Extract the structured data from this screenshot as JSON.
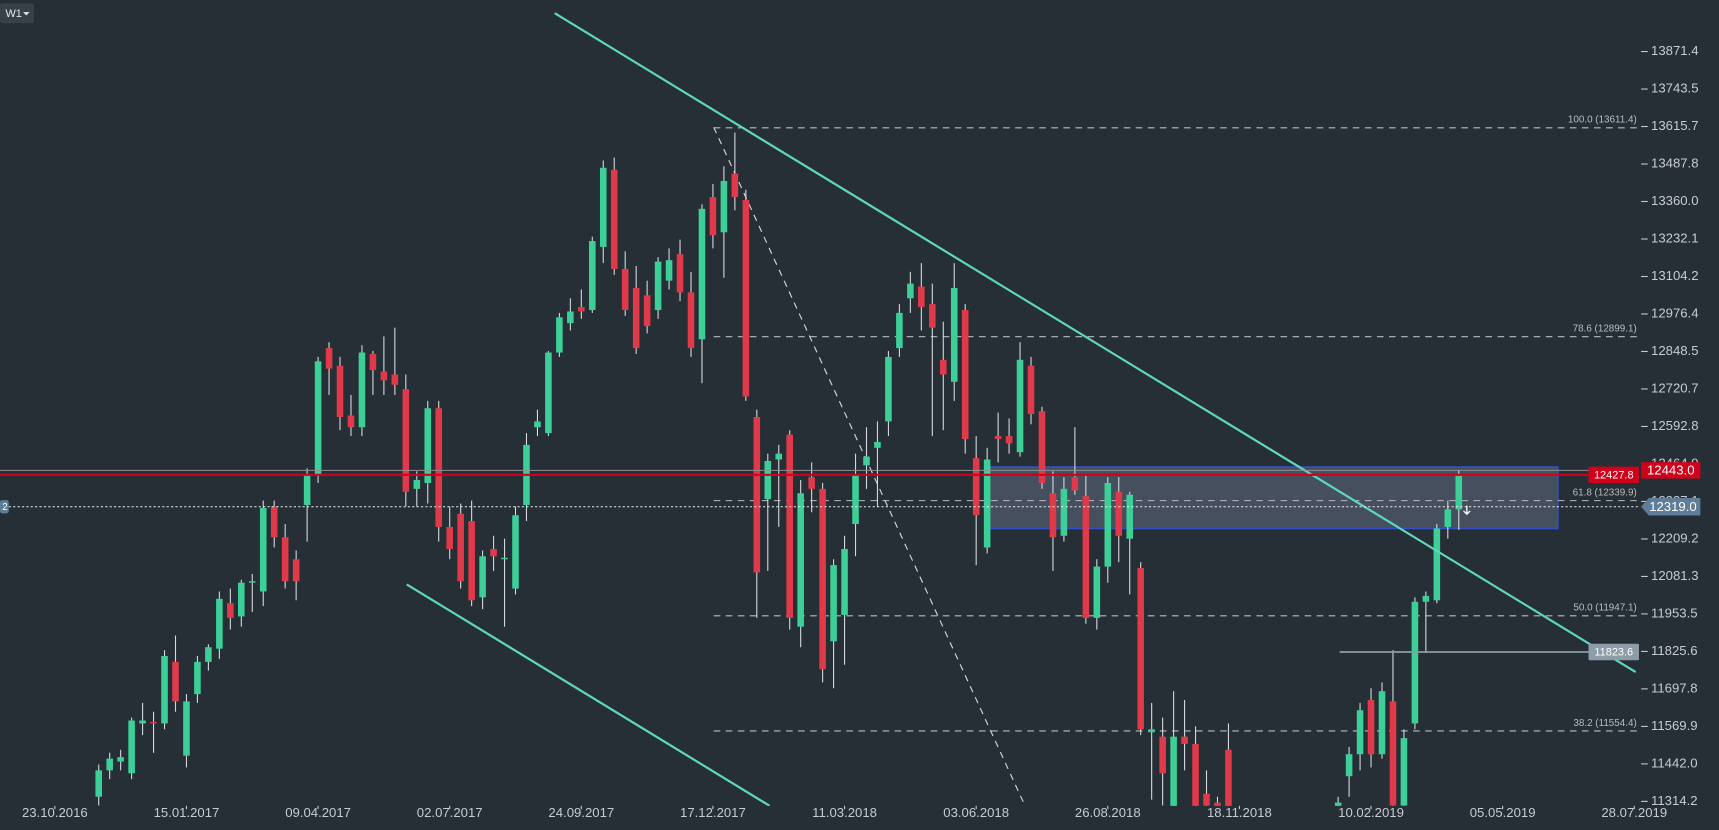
{
  "chart_data": {
    "type": "candlestick",
    "timeframe": "W1",
    "left_tag": "2",
    "up_color": "#3ccf98",
    "down_color": "#e0394a",
    "wick_color": "#d4d8dc",
    "xlim": [
      "18.09.2016",
      "31.07.2019"
    ],
    "ylim": [
      11299,
      14047
    ],
    "xticks": [
      "23.10.2016",
      "15.01.2017",
      "09.04.2017",
      "02.07.2017",
      "24.09.2017",
      "17.12.2017",
      "11.03.2018",
      "03.06.2018",
      "26.08.2018",
      "18.11.2018",
      "10.02.2019",
      "05.05.2019",
      "28.07.2019"
    ],
    "yticks": [
      13871.4,
      13743.5,
      13615.7,
      13487.8,
      {
        "value": 13360,
        "label": "13360.0"
      },
      13232.1,
      13104.2,
      12976.4,
      12848.5,
      12720.7,
      12592.8,
      12464.9,
      12337.1,
      12209.2,
      12081.3,
      11953.5,
      11825.6,
      11697.8,
      11569.9,
      {
        "value": 11442,
        "label": "11442.0"
      },
      11314.2
    ],
    "fib_levels": [
      {
        "value": 13611.4,
        "label": "100.0 (13611.4)"
      },
      {
        "value": 12899.1,
        "label": "78.6 (12899.1)"
      },
      {
        "value": 12339.9,
        "label": "61.8 (12339.9)"
      },
      {
        "value": 11947.1,
        "label": "50.0 (11947.1)"
      },
      {
        "value": 11554.4,
        "label": "38.2 (11554.4)"
      }
    ],
    "levels": [
      {
        "value": 12443,
        "label": "12443.0",
        "color": "#d0021b"
      },
      {
        "value": 12427.8,
        "label": "12427.8",
        "color": "#d0021b"
      },
      {
        "value": 12319,
        "label": "12319.0",
        "color": "#5f7d98"
      },
      {
        "value": 11823.6,
        "label": "11823.6",
        "color": "#8d9ca8"
      }
    ],
    "x": [
      "20.11.2016",
      "27.11.2016",
      "04.12.2016",
      "11.12.2016",
      "18.12.2016",
      "25.12.2016",
      "01.01.2017",
      "08.01.2017",
      "15.01.2017",
      "22.01.2017",
      "29.01.2017",
      "05.02.2017",
      "12.02.2017",
      "19.02.2017",
      "26.02.2017",
      "05.03.2017",
      "12.03.2017",
      "19.03.2017",
      "26.03.2017",
      "02.04.2017",
      "09.04.2017",
      "16.04.2017",
      "23.04.2017",
      "30.04.2017",
      "07.05.2017",
      "14.05.2017",
      "21.05.2017",
      "28.05.2017",
      "04.06.2017",
      "11.06.2017",
      "18.06.2017",
      "25.06.2017",
      "02.07.2017",
      "09.07.2017",
      "16.07.2017",
      "23.07.2017",
      "30.07.2017",
      "06.08.2017",
      "13.08.2017",
      "20.08.2017",
      "27.08.2017",
      "03.09.2017",
      "10.09.2017",
      "17.09.2017",
      "24.09.2017",
      "01.10.2017",
      "08.10.2017",
      "15.10.2017",
      "22.10.2017",
      "29.10.2017",
      "05.11.2017",
      "12.11.2017",
      "19.11.2017",
      "26.11.2017",
      "03.12.2017",
      "10.12.2017",
      "17.12.2017",
      "24.12.2017",
      "31.12.2017",
      "07.01.2018",
      "14.01.2018",
      "21.01.2018",
      "28.01.2018",
      "04.02.2018",
      "11.02.2018",
      "18.02.2018",
      "25.02.2018",
      "04.03.2018",
      "11.03.2018",
      "18.03.2018",
      "25.03.2018",
      "01.04.2018",
      "08.04.2018",
      "15.04.2018",
      "22.04.2018",
      "29.04.2018",
      "06.05.2018",
      "13.05.2018",
      "20.05.2018",
      "27.05.2018",
      "03.06.2018",
      "10.06.2018",
      "17.06.2018",
      "24.06.2018",
      "01.07.2018",
      "08.07.2018",
      "15.07.2018",
      "22.07.2018",
      "29.07.2018",
      "05.08.2018",
      "12.08.2018",
      "19.08.2018",
      "26.08.2018",
      "02.09.2018",
      "09.09.2018",
      "16.09.2018",
      "23.09.2018",
      "30.09.2018",
      "07.10.2018",
      "14.10.2018",
      "21.10.2018",
      "28.10.2018",
      "04.11.2018",
      "11.11.2018",
      "20.01.2019",
      "27.01.2019",
      "03.02.2019",
      "10.02.2019",
      "17.02.2019",
      "24.02.2019",
      "03.03.2019",
      "10.03.2019",
      "17.03.2019",
      "24.03.2019",
      "31.03.2019",
      "07.04.2019"
    ],
    "open": [
      11330,
      11420,
      11450,
      11410,
      11580,
      11585,
      11580,
      11790,
      11470,
      11680,
      11790,
      11835,
      11990,
      11945,
      12060,
      12030,
      12320,
      12215,
      12140,
      12325,
      12425,
      12860,
      12800,
      12630,
      12590,
      12840,
      12780,
      12770,
      12720,
      12380,
      12400,
      12655,
      12250,
      12295,
      12270,
      12010,
      12175,
      12140,
      12040,
      12325,
      12590,
      12570,
      12845,
      12945,
      13000,
      12990,
      13205,
      13468,
      13130,
      13065,
      13040,
      12990,
      13090,
      13180,
      13050,
      12890,
      13375,
      13255,
      13455,
      13365,
      12625,
      12345,
      12480,
      12565,
      11910,
      12420,
      12380,
      11860,
      11950,
      12260,
      12460,
      12520,
      12610,
      12860,
      13030,
      13070,
      13010,
      12820,
      12745,
      12990,
      12485,
      12180,
      12560,
      12560,
      12505,
      12800,
      12645,
      12365,
      12220,
      12420,
      12355,
      11940,
      12115,
      12370,
      12210,
      12110,
      11550,
      11535,
      11290,
      11535,
      11510,
      11340,
      11310,
      11490,
      11290,
      11400,
      11475,
      11660,
      11475,
      11655,
      11300,
      11580,
      11995,
      12000,
      12250,
      12310
    ],
    "high": [
      11440,
      11480,
      11490,
      11600,
      11650,
      11620,
      11830,
      11880,
      11680,
      11810,
      11850,
      12030,
      12040,
      12070,
      12090,
      12340,
      12340,
      12260,
      12170,
      12450,
      12830,
      12880,
      12830,
      12700,
      12870,
      12850,
      12900,
      12930,
      12770,
      12440,
      12680,
      12680,
      12320,
      12330,
      12340,
      12170,
      12220,
      12210,
      12320,
      12570,
      12650,
      12850,
      12980,
      13030,
      13060,
      13240,
      13500,
      13510,
      13190,
      13140,
      13090,
      13170,
      13200,
      13230,
      13120,
      13350,
      13420,
      13480,
      13595,
      13400,
      12650,
      12500,
      12530,
      12580,
      12410,
      12470,
      12400,
      12140,
      12220,
      12500,
      12590,
      12610,
      12850,
      13010,
      13120,
      13150,
      13080,
      12950,
      13150,
      13010,
      12560,
      12520,
      12640,
      12620,
      12880,
      12830,
      12660,
      12440,
      12420,
      12590,
      12430,
      12140,
      12420,
      12420,
      12370,
      12130,
      11650,
      11600,
      11690,
      11660,
      11570,
      11420,
      11330,
      11580,
      11330,
      11500,
      11650,
      11700,
      11720,
      11830,
      11560,
      12010,
      12030,
      12260,
      12340,
      12443
    ],
    "low": [
      11300,
      11390,
      11420,
      11390,
      11540,
      11480,
      11560,
      11620,
      11430,
      11650,
      11760,
      11800,
      11900,
      11910,
      11960,
      11980,
      12180,
      12040,
      12000,
      12200,
      12400,
      12700,
      12580,
      12560,
      12560,
      12700,
      12700,
      12700,
      12320,
      12320,
      12330,
      12200,
      12140,
      12040,
      11980,
      11970,
      12100,
      11910,
      12020,
      12270,
      12560,
      12560,
      12830,
      12920,
      12960,
      12980,
      13150,
      13110,
      12970,
      12840,
      12910,
      12960,
      13060,
      13020,
      12830,
      12740,
      13200,
      13100,
      13330,
      12680,
      11940,
      12100,
      12250,
      11900,
      11840,
      12300,
      11720,
      11700,
      11780,
      12150,
      12380,
      12320,
      12560,
      12830,
      12980,
      12920,
      12560,
      12580,
      12680,
      12500,
      12120,
      12160,
      12470,
      12500,
      12490,
      12600,
      12380,
      12100,
      12200,
      12360,
      11920,
      11900,
      12060,
      12130,
      12020,
      11540,
      11320,
      11300,
      11250,
      11420,
      11250,
      11260,
      11250,
      11250,
      11250,
      11330,
      11420,
      11430,
      11460,
      11250,
      11260,
      11560,
      11820,
      11990,
      12210,
      12240
    ],
    "close": [
      11420,
      11460,
      11465,
      11590,
      11590,
      11580,
      11810,
      11655,
      11655,
      11790,
      11840,
      12005,
      11940,
      12060,
      12065,
      12315,
      12215,
      12065,
      12065,
      12430,
      12815,
      12790,
      12625,
      12590,
      12845,
      12785,
      12750,
      12735,
      12370,
      12410,
      12655,
      12250,
      12175,
      12065,
      12000,
      12150,
      12150,
      12145,
      12290,
      12530,
      12610,
      12845,
      12965,
      12985,
      12985,
      13225,
      13475,
      13130,
      12990,
      12860,
      12935,
      13155,
      13160,
      13050,
      12860,
      13335,
      13245,
      13430,
      13375,
      12695,
      12095,
      12475,
      12500,
      11940,
      12365,
      12380,
      11765,
      12120,
      12175,
      12430,
      12490,
      12540,
      12830,
      12980,
      13080,
      13000,
      12930,
      12770,
      13065,
      12550,
      12290,
      12480,
      12550,
      12535,
      12820,
      12635,
      12400,
      12215,
      12380,
      12375,
      11940,
      12115,
      12400,
      12220,
      12360,
      11560,
      11560,
      11410,
      11535,
      11510,
      11280,
      11300,
      11280,
      11280,
      11310,
      11475,
      11625,
      11475,
      11690,
      11300,
      11530,
      11995,
      12015,
      12245,
      12310,
      12430
    ]
  }
}
